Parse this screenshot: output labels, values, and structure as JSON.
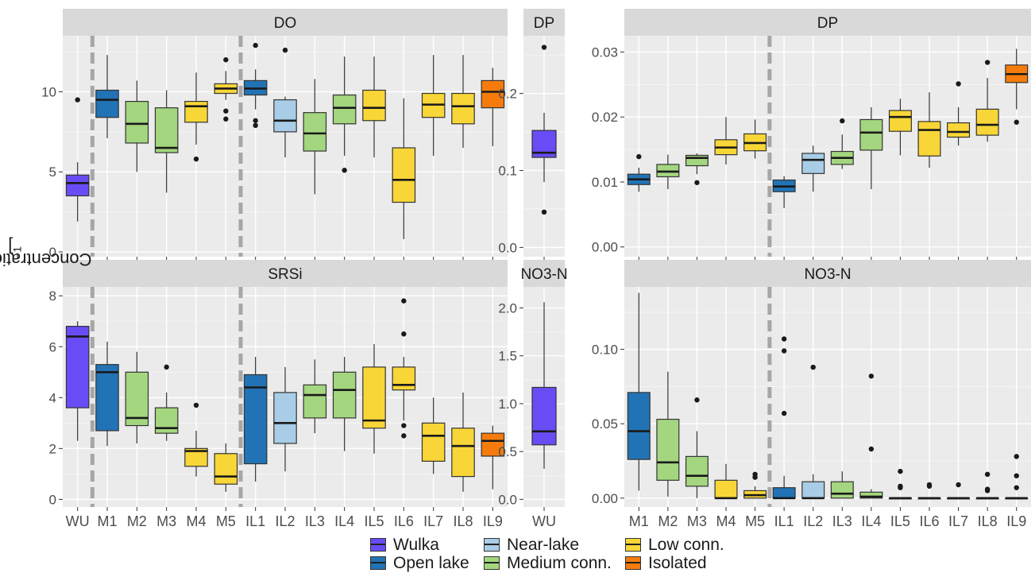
{
  "figure": {
    "ylabel_prefix": "Concentration [ mg L",
    "ylabel_sup": "−1",
    "ylabel_suffix": " ]"
  },
  "groups": {
    "Wulka": {
      "label": "Wulka",
      "color": "#6a4cf7"
    },
    "Open": {
      "label": "Open lake",
      "color": "#2273b5"
    },
    "Near": {
      "label": "Near-lake",
      "color": "#a9cde6"
    },
    "Medium": {
      "label": "Medium conn.",
      "color": "#a4d67f"
    },
    "Low": {
      "label": "Low conn.",
      "color": "#f9d637"
    },
    "Iso": {
      "label": "Isolated",
      "color": "#f57c0c"
    }
  },
  "legend": [
    {
      "group": "Wulka",
      "label": "Wulka"
    },
    {
      "group": "Open",
      "label": "Open lake"
    },
    {
      "group": "Near",
      "label": "Near-lake"
    },
    {
      "group": "Medium",
      "label": "Medium conn."
    },
    {
      "group": "Low",
      "label": "Low conn."
    },
    {
      "group": "Iso",
      "label": "Isolated"
    }
  ],
  "chart_data": [
    {
      "type": "boxplot",
      "title": "DO",
      "ylim": [
        -0.3,
        13.5
      ],
      "y_ticks": [
        0,
        5,
        10
      ],
      "y_tick_labels": [
        "0",
        "5",
        "10"
      ],
      "categories": [
        "WU",
        "M1",
        "M2",
        "M3",
        "M4",
        "M5",
        "IL1",
        "IL2",
        "IL3",
        "IL4",
        "IL5",
        "IL6",
        "IL7",
        "IL8",
        "IL9"
      ],
      "show_x_labels": false,
      "separators_after": [
        "WU",
        "M5"
      ],
      "boxes": [
        {
          "cat": "WU",
          "group": "Wulka",
          "min": 1.9,
          "q1": 3.5,
          "median": 4.3,
          "q3": 4.8,
          "max": 5.6,
          "outliers": [
            9.5
          ]
        },
        {
          "cat": "M1",
          "group": "Open",
          "min": 7.1,
          "q1": 8.4,
          "median": 9.5,
          "q3": 10.1,
          "max": 12.3,
          "outliers": []
        },
        {
          "cat": "M2",
          "group": "Medium",
          "min": 5.0,
          "q1": 6.8,
          "median": 8.0,
          "q3": 9.4,
          "max": 10.7,
          "outliers": []
        },
        {
          "cat": "M3",
          "group": "Medium",
          "min": 3.7,
          "q1": 6.2,
          "median": 6.5,
          "q3": 9.0,
          "max": 10.1,
          "outliers": []
        },
        {
          "cat": "M4",
          "group": "Low",
          "min": 6.7,
          "q1": 8.1,
          "median": 9.1,
          "q3": 9.4,
          "max": 11.2,
          "outliers": [
            5.8
          ]
        },
        {
          "cat": "M5",
          "group": "Low",
          "min": 9.5,
          "q1": 9.9,
          "median": 10.2,
          "q3": 10.5,
          "max": 11.3,
          "outliers": [
            12.0,
            8.8,
            8.3
          ]
        },
        {
          "cat": "IL1",
          "group": "Open",
          "min": 8.9,
          "q1": 9.8,
          "median": 10.2,
          "q3": 10.7,
          "max": 11.4,
          "outliers": [
            12.9,
            8.2,
            7.9
          ]
        },
        {
          "cat": "IL2",
          "group": "Near",
          "min": 5.9,
          "q1": 7.5,
          "median": 8.2,
          "q3": 9.5,
          "max": 9.7,
          "outliers": [
            12.6
          ]
        },
        {
          "cat": "IL3",
          "group": "Medium",
          "min": 3.6,
          "q1": 6.3,
          "median": 7.4,
          "q3": 8.7,
          "max": 10.8,
          "outliers": []
        },
        {
          "cat": "IL4",
          "group": "Medium",
          "min": 6.0,
          "q1": 8.0,
          "median": 9.0,
          "q3": 9.8,
          "max": 12.2,
          "outliers": [
            5.1
          ]
        },
        {
          "cat": "IL5",
          "group": "Low",
          "min": 5.9,
          "q1": 8.2,
          "median": 9.0,
          "q3": 10.1,
          "max": 12.2,
          "outliers": []
        },
        {
          "cat": "IL6",
          "group": "Low",
          "min": 0.8,
          "q1": 3.1,
          "median": 4.5,
          "q3": 6.5,
          "max": 9.6,
          "outliers": []
        },
        {
          "cat": "IL7",
          "group": "Low",
          "min": 6.0,
          "q1": 8.4,
          "median": 9.2,
          "q3": 9.9,
          "max": 12.3,
          "outliers": []
        },
        {
          "cat": "IL8",
          "group": "Low",
          "min": 6.5,
          "q1": 8.0,
          "median": 9.1,
          "q3": 9.9,
          "max": 12.3,
          "outliers": []
        },
        {
          "cat": "IL9",
          "group": "Iso",
          "min": 6.6,
          "q1": 9.0,
          "median": 10.0,
          "q3": 10.7,
          "max": 11.5,
          "outliers": []
        }
      ]
    },
    {
      "type": "boxplot",
      "title": "DP",
      "ylim": [
        -0.012,
        0.275
      ],
      "y_ticks": [
        0,
        0.1,
        0.2
      ],
      "y_tick_labels": [
        "0.0",
        "0.1",
        "0.2"
      ],
      "categories": [
        "WU"
      ],
      "show_x_labels": false,
      "separators_after": [],
      "boxes": [
        {
          "cat": "WU",
          "group": "Wulka",
          "min": 0.085,
          "q1": 0.117,
          "median": 0.123,
          "q3": 0.152,
          "max": 0.175,
          "outliers": [
            0.26,
            0.046
          ]
        }
      ]
    },
    {
      "type": "boxplot",
      "title": "DP",
      "ylim": [
        -0.0015,
        0.0325
      ],
      "y_ticks": [
        0,
        0.01,
        0.02,
        0.03
      ],
      "y_tick_labels": [
        "0.00",
        "0.01",
        "0.02",
        "0.03"
      ],
      "categories": [
        "M1",
        "M2",
        "M3",
        "M4",
        "M5",
        "IL1",
        "IL2",
        "IL3",
        "IL4",
        "IL5",
        "IL6",
        "IL7",
        "IL8",
        "IL9"
      ],
      "show_x_labels": false,
      "separators_after": [
        "M5"
      ],
      "boxes": [
        {
          "cat": "M1",
          "group": "Open",
          "min": 0.0085,
          "q1": 0.0096,
          "median": 0.0104,
          "q3": 0.0112,
          "max": 0.0122,
          "outliers": [
            0.0139
          ]
        },
        {
          "cat": "M2",
          "group": "Medium",
          "min": 0.0089,
          "q1": 0.0108,
          "median": 0.0116,
          "q3": 0.0127,
          "max": 0.0142,
          "outliers": []
        },
        {
          "cat": "M3",
          "group": "Medium",
          "min": 0.0112,
          "q1": 0.0125,
          "median": 0.0137,
          "q3": 0.0141,
          "max": 0.0144,
          "outliers": [
            0.0099
          ]
        },
        {
          "cat": "M4",
          "group": "Low",
          "min": 0.0127,
          "q1": 0.0142,
          "median": 0.0153,
          "q3": 0.0165,
          "max": 0.02,
          "outliers": []
        },
        {
          "cat": "M5",
          "group": "Low",
          "min": 0.0136,
          "q1": 0.0148,
          "median": 0.016,
          "q3": 0.0174,
          "max": 0.0196,
          "outliers": []
        },
        {
          "cat": "IL1",
          "group": "Open",
          "min": 0.006,
          "q1": 0.0085,
          "median": 0.0093,
          "q3": 0.0103,
          "max": 0.0109,
          "outliers": []
        },
        {
          "cat": "IL2",
          "group": "Near",
          "min": 0.0085,
          "q1": 0.0113,
          "median": 0.0134,
          "q3": 0.0144,
          "max": 0.0156,
          "outliers": []
        },
        {
          "cat": "IL3",
          "group": "Medium",
          "min": 0.012,
          "q1": 0.0127,
          "median": 0.0137,
          "q3": 0.0147,
          "max": 0.0173,
          "outliers": [
            0.0194
          ]
        },
        {
          "cat": "IL4",
          "group": "Medium",
          "min": 0.0089,
          "q1": 0.0149,
          "median": 0.0176,
          "q3": 0.0196,
          "max": 0.0215,
          "outliers": []
        },
        {
          "cat": "IL5",
          "group": "Low",
          "min": 0.0141,
          "q1": 0.0178,
          "median": 0.02,
          "q3": 0.021,
          "max": 0.0228,
          "outliers": []
        },
        {
          "cat": "IL6",
          "group": "Low",
          "min": 0.0122,
          "q1": 0.014,
          "median": 0.018,
          "q3": 0.0193,
          "max": 0.0238,
          "outliers": []
        },
        {
          "cat": "IL7",
          "group": "Low",
          "min": 0.0156,
          "q1": 0.0169,
          "median": 0.0177,
          "q3": 0.0191,
          "max": 0.0215,
          "outliers": [
            0.0251
          ]
        },
        {
          "cat": "IL8",
          "group": "Low",
          "min": 0.0162,
          "q1": 0.0172,
          "median": 0.0188,
          "q3": 0.0212,
          "max": 0.026,
          "outliers": [
            0.0284
          ]
        },
        {
          "cat": "IL9",
          "group": "Iso",
          "min": 0.0212,
          "q1": 0.0253,
          "median": 0.0266,
          "q3": 0.028,
          "max": 0.0305,
          "outliers": [
            0.0192
          ]
        }
      ]
    },
    {
      "type": "boxplot",
      "title": "SRSi",
      "ylim": [
        -0.3,
        8.35
      ],
      "y_ticks": [
        0,
        2,
        4,
        6,
        8
      ],
      "y_tick_labels": [
        "0",
        "2",
        "4",
        "6",
        "8"
      ],
      "categories": [
        "WU",
        "M1",
        "M2",
        "M3",
        "M4",
        "M5",
        "IL1",
        "IL2",
        "IL3",
        "IL4",
        "IL5",
        "IL6",
        "IL7",
        "IL8",
        "IL9"
      ],
      "show_x_labels": true,
      "separators_after": [
        "WU",
        "M5"
      ],
      "boxes": [
        {
          "cat": "WU",
          "group": "Wulka",
          "min": 2.3,
          "q1": 3.6,
          "median": 6.4,
          "q3": 6.8,
          "max": 7.0,
          "outliers": []
        },
        {
          "cat": "M1",
          "group": "Open",
          "min": 2.1,
          "q1": 2.7,
          "median": 5.0,
          "q3": 5.3,
          "max": 6.2,
          "outliers": []
        },
        {
          "cat": "M2",
          "group": "Medium",
          "min": 2.2,
          "q1": 2.9,
          "median": 3.2,
          "q3": 5.0,
          "max": 5.8,
          "outliers": []
        },
        {
          "cat": "M3",
          "group": "Medium",
          "min": 2.3,
          "q1": 2.6,
          "median": 2.8,
          "q3": 3.6,
          "max": 4.2,
          "outliers": [
            5.2
          ]
        },
        {
          "cat": "M4",
          "group": "Low",
          "min": 0.9,
          "q1": 1.3,
          "median": 1.9,
          "q3": 2.0,
          "max": 2.7,
          "outliers": [
            3.7
          ]
        },
        {
          "cat": "M5",
          "group": "Low",
          "min": 0.3,
          "q1": 0.6,
          "median": 0.9,
          "q3": 1.8,
          "max": 2.2,
          "outliers": []
        },
        {
          "cat": "IL1",
          "group": "Open",
          "min": 0.7,
          "q1": 1.4,
          "median": 4.4,
          "q3": 4.9,
          "max": 5.6,
          "outliers": []
        },
        {
          "cat": "IL2",
          "group": "Near",
          "min": 1.1,
          "q1": 2.2,
          "median": 3.0,
          "q3": 4.2,
          "max": 5.2,
          "outliers": []
        },
        {
          "cat": "IL3",
          "group": "Medium",
          "min": 2.6,
          "q1": 3.2,
          "median": 4.1,
          "q3": 4.5,
          "max": 5.5,
          "outliers": []
        },
        {
          "cat": "IL4",
          "group": "Medium",
          "min": 1.9,
          "q1": 3.2,
          "median": 4.3,
          "q3": 5.0,
          "max": 5.6,
          "outliers": []
        },
        {
          "cat": "IL5",
          "group": "Low",
          "min": 1.8,
          "q1": 2.8,
          "median": 3.1,
          "q3": 5.2,
          "max": 6.1,
          "outliers": []
        },
        {
          "cat": "IL6",
          "group": "Low",
          "min": 3.1,
          "q1": 4.3,
          "median": 4.5,
          "q3": 5.2,
          "max": 5.6,
          "outliers": [
            7.8,
            6.5,
            2.9,
            2.5
          ]
        },
        {
          "cat": "IL7",
          "group": "Low",
          "min": 1.0,
          "q1": 1.5,
          "median": 2.5,
          "q3": 3.0,
          "max": 4.0,
          "outliers": []
        },
        {
          "cat": "IL8",
          "group": "Low",
          "min": 0.3,
          "q1": 0.9,
          "median": 2.1,
          "q3": 2.8,
          "max": 4.2,
          "outliers": []
        },
        {
          "cat": "IL9",
          "group": "Iso",
          "min": 0.4,
          "q1": 1.7,
          "median": 2.3,
          "q3": 2.6,
          "max": 2.9,
          "outliers": []
        }
      ]
    },
    {
      "type": "boxplot",
      "title": "NO3-N",
      "ylim": [
        -0.08,
        2.22
      ],
      "y_ticks": [
        0,
        0.5,
        1.0,
        1.5,
        2.0
      ],
      "y_tick_labels": [
        "0.0",
        "0.5",
        "1.0",
        "1.5",
        "2.0"
      ],
      "categories": [
        "WU"
      ],
      "show_x_labels": true,
      "separators_after": [],
      "boxes": [
        {
          "cat": "WU",
          "group": "Wulka",
          "min": 0.32,
          "q1": 0.57,
          "median": 0.71,
          "q3": 1.17,
          "max": 2.06,
          "outliers": []
        }
      ]
    },
    {
      "type": "boxplot",
      "title": "NO3-N",
      "ylim": [
        -0.006,
        0.142
      ],
      "y_ticks": [
        0,
        0.05,
        0.1
      ],
      "y_tick_labels": [
        "0.00",
        "0.05",
        "0.10"
      ],
      "categories": [
        "M1",
        "M2",
        "M3",
        "M4",
        "M5",
        "IL1",
        "IL2",
        "IL3",
        "IL4",
        "IL5",
        "IL6",
        "IL7",
        "IL8",
        "IL9"
      ],
      "show_x_labels": true,
      "separators_after": [
        "M5"
      ],
      "boxes": [
        {
          "cat": "M1",
          "group": "Open",
          "min": 0.005,
          "q1": 0.026,
          "median": 0.045,
          "q3": 0.071,
          "max": 0.138,
          "outliers": []
        },
        {
          "cat": "M2",
          "group": "Medium",
          "min": 0.001,
          "q1": 0.012,
          "median": 0.024,
          "q3": 0.053,
          "max": 0.085,
          "outliers": []
        },
        {
          "cat": "M3",
          "group": "Medium",
          "min": 0.0,
          "q1": 0.008,
          "median": 0.015,
          "q3": 0.028,
          "max": 0.045,
          "outliers": [
            0.066
          ]
        },
        {
          "cat": "M4",
          "group": "Low",
          "min": 0.0,
          "q1": 0.0,
          "median": 0.0,
          "q3": 0.012,
          "max": 0.023,
          "outliers": []
        },
        {
          "cat": "M5",
          "group": "Low",
          "min": 0.0,
          "q1": 0.0,
          "median": 0.002,
          "q3": 0.005,
          "max": 0.008,
          "outliers": [
            0.016,
            0.014
          ]
        },
        {
          "cat": "IL1",
          "group": "Open",
          "min": 0.0,
          "q1": 0.0,
          "median": 0.0,
          "q3": 0.007,
          "max": 0.015,
          "outliers": [
            0.107,
            0.099,
            0.057
          ]
        },
        {
          "cat": "IL2",
          "group": "Near",
          "min": 0.0,
          "q1": 0.0,
          "median": 0.0,
          "q3": 0.011,
          "max": 0.016,
          "outliers": [
            0.088
          ]
        },
        {
          "cat": "IL3",
          "group": "Medium",
          "min": 0.0,
          "q1": 0.0,
          "median": 0.003,
          "q3": 0.011,
          "max": 0.018,
          "outliers": []
        },
        {
          "cat": "IL4",
          "group": "Medium",
          "min": 0.0,
          "q1": 0.0,
          "median": 0.001,
          "q3": 0.004,
          "max": 0.006,
          "outliers": [
            0.082,
            0.033
          ]
        },
        {
          "cat": "IL5",
          "group": "Low",
          "min": 0.0,
          "q1": 0.0,
          "median": 0.0,
          "q3": 0.0,
          "max": 0.0,
          "outliers": [
            0.018,
            0.008,
            0.007
          ]
        },
        {
          "cat": "IL6",
          "group": "Low",
          "min": 0.0,
          "q1": 0.0,
          "median": 0.0,
          "q3": 0.0,
          "max": 0.0,
          "outliers": [
            0.009,
            0.008
          ]
        },
        {
          "cat": "IL7",
          "group": "Low",
          "min": 0.0,
          "q1": 0.0,
          "median": 0.0,
          "q3": 0.0,
          "max": 0.0,
          "outliers": [
            0.009
          ]
        },
        {
          "cat": "IL8",
          "group": "Low",
          "min": 0.0,
          "q1": 0.0,
          "median": 0.0,
          "q3": 0.0,
          "max": 0.0,
          "outliers": [
            0.016,
            0.006,
            0.005
          ]
        },
        {
          "cat": "IL9",
          "group": "Iso",
          "min": 0.0,
          "q1": 0.0,
          "median": 0.0,
          "q3": 0.0,
          "max": 0.0,
          "outliers": [
            0.028,
            0.015,
            0.007
          ]
        }
      ]
    }
  ]
}
